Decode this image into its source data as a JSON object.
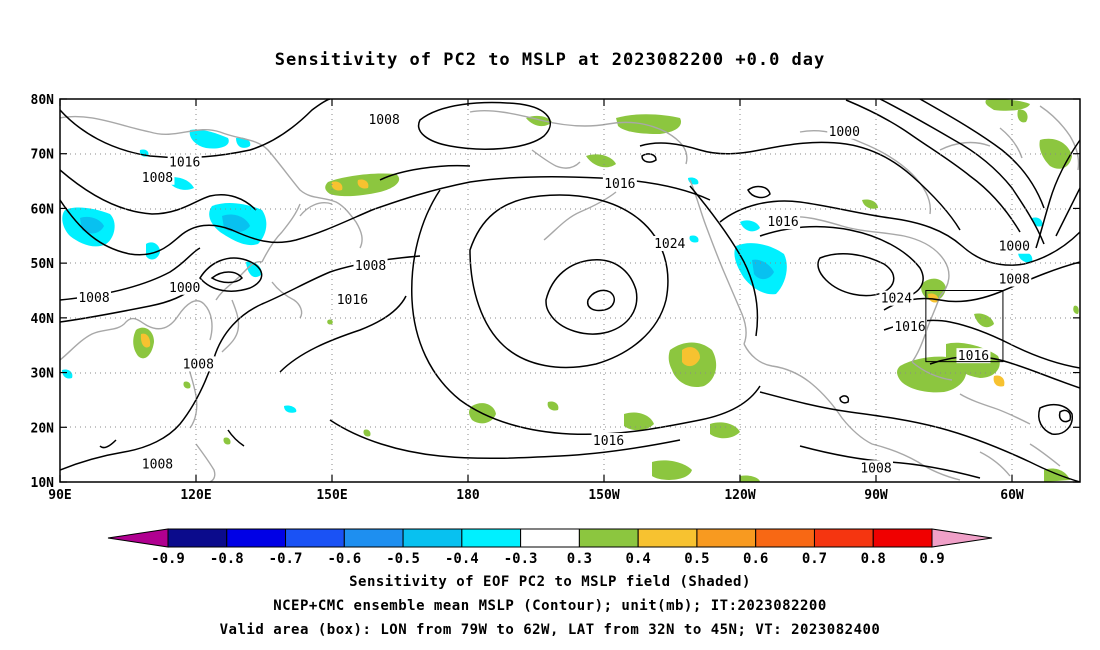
{
  "title": "Sensitivity of PC2 to MSLP at 2023082200 +0.0 day",
  "map": {
    "lat_labels": [
      "80N",
      "70N",
      "60N",
      "50N",
      "40N",
      "30N",
      "20N",
      "10N"
    ],
    "lon_labels": [
      "90E",
      "120E",
      "150E",
      "180",
      "150W",
      "120W",
      "90W",
      "60W"
    ],
    "contour_labels": [
      {
        "text": "1008",
        "lon": 161.5,
        "lat": 76.2
      },
      {
        "text": "1000",
        "lon": 263,
        "lat": 74.0
      },
      {
        "text": "1016",
        "lon": 117.5,
        "lat": 68.4
      },
      {
        "text": "1008",
        "lon": 111.5,
        "lat": 65.6
      },
      {
        "text": "1016",
        "lon": 213.5,
        "lat": 64.5
      },
      {
        "text": "1016",
        "lon": 249.5,
        "lat": 57.5
      },
      {
        "text": "1024",
        "lon": 224.5,
        "lat": 53.5
      },
      {
        "text": "1000",
        "lon": 300.5,
        "lat": 53.0
      },
      {
        "text": "1008",
        "lon": 158.5,
        "lat": 49.5
      },
      {
        "text": "1008",
        "lon": 300.5,
        "lat": 47.0
      },
      {
        "text": "1000",
        "lon": 117.5,
        "lat": 45.5
      },
      {
        "text": "1008",
        "lon": 97.5,
        "lat": 43.6
      },
      {
        "text": "1016",
        "lon": 154.5,
        "lat": 43.3
      },
      {
        "text": "1024",
        "lon": 274.5,
        "lat": 43.5
      },
      {
        "text": "1016",
        "lon": 277.5,
        "lat": 38.3
      },
      {
        "text": "1008",
        "lon": 120.5,
        "lat": 31.5
      },
      {
        "text": "1016",
        "lon": 291.5,
        "lat": 33.0
      },
      {
        "text": "1016",
        "lon": 211,
        "lat": 17.5
      },
      {
        "text": "1008",
        "lon": 111.5,
        "lat": 13.2
      },
      {
        "text": "1008",
        "lon": 270,
        "lat": 12.5
      }
    ],
    "valid_box": {
      "lon_west": 281,
      "lon_east": 298,
      "lat_south": 32,
      "lat_north": 45
    }
  },
  "colorbar": {
    "ticks": [
      "-0.9",
      "-0.8",
      "-0.7",
      "-0.6",
      "-0.5",
      "-0.4",
      "-0.3",
      "0.3",
      "0.4",
      "0.5",
      "0.6",
      "0.7",
      "0.8",
      "0.9"
    ],
    "colors": [
      "#0b0b8c",
      "#0000e6",
      "#1a52f5",
      "#1e8ff0",
      "#08c1f0",
      "#00f0ff",
      "#ffffff",
      "#8cc63f",
      "#f7c230",
      "#f89a20",
      "#f86814",
      "#f53510",
      "#f00000"
    ],
    "low_end": "#b00090",
    "high_end": "#f0a0c8"
  },
  "footer": {
    "line1": "Sensitivity of EOF PC2 to MSLP field (Shaded)",
    "line2": "NCEP+CMC ensemble mean MSLP (Contour); unit(mb); IT:2023082200",
    "line3": "Valid area (box): LON from 79W to 62W, LAT from 32N to 45N; VT: 2023082400"
  }
}
